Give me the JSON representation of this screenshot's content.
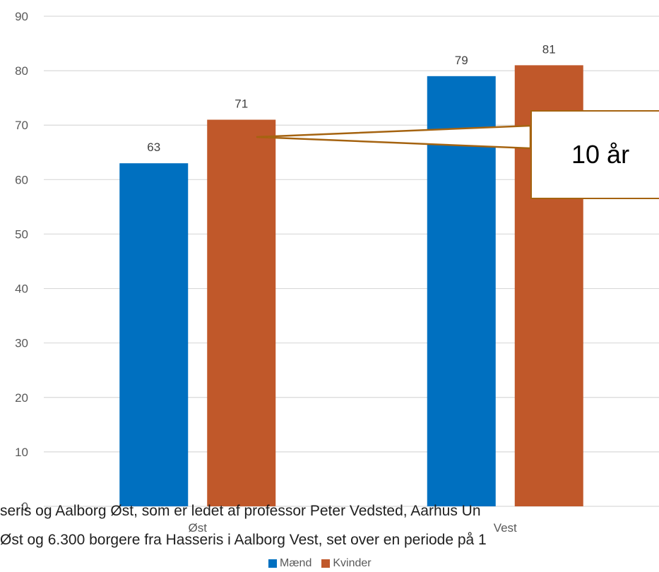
{
  "chart_data": {
    "type": "bar",
    "categories": [
      "Øst",
      "Vest"
    ],
    "series": [
      {
        "name": "Mænd",
        "values": [
          63,
          79
        ],
        "color": "#0070c0"
      },
      {
        "name": "Kvinder",
        "values": [
          71,
          81
        ],
        "color": "#c0582a"
      }
    ],
    "ylim": [
      0,
      90
    ],
    "yticks": [
      0,
      10,
      20,
      30,
      40,
      50,
      60,
      70,
      80,
      90
    ],
    "grid": true,
    "legend_position": "bottom",
    "annotation": {
      "text": "10 år",
      "border_color": "#a56310"
    }
  },
  "overlay_text": {
    "line1": "seris og Aalborg Øst, som er ledet af professor Peter Vedsted, Aarhus Un",
    "line2": "Øst og 6.300 borgere fra Hasseris i Aalborg Vest, set over en periode på 1"
  }
}
